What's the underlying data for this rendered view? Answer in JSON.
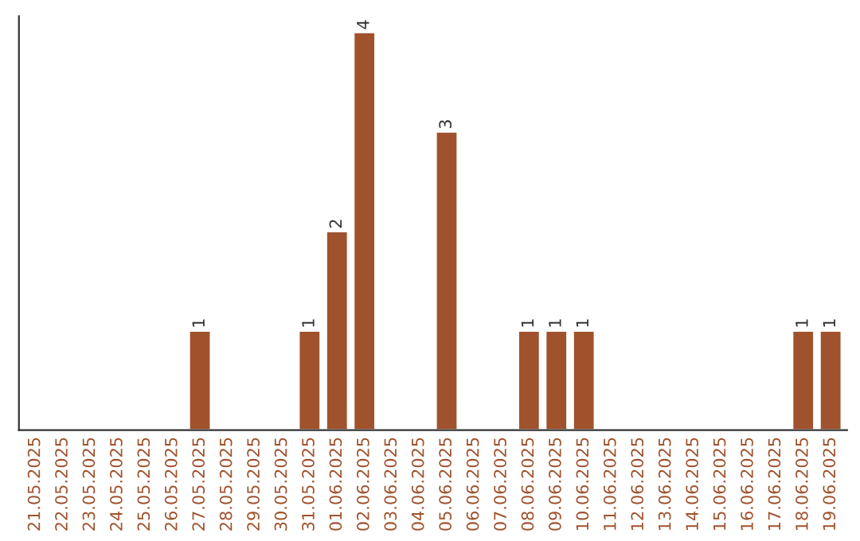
{
  "chart_data": {
    "type": "bar",
    "categories": [
      "21.05.2025",
      "22.05.2025",
      "23.05.2025",
      "24.05.2025",
      "25.05.2025",
      "26.05.2025",
      "27.05.2025",
      "28.05.2025",
      "29.05.2025",
      "30.05.2025",
      "31.05.2025",
      "01.06.2025",
      "02.06.2025",
      "03.06.2025",
      "04.06.2025",
      "05.06.2025",
      "06.06.2025",
      "07.06.2025",
      "08.06.2025",
      "09.06.2025",
      "10.06.2025",
      "11.06.2025",
      "12.06.2025",
      "13.06.2025",
      "14.06.2025",
      "15.06.2025",
      "16.06.2025",
      "17.06.2025",
      "18.06.2025",
      "19.06.2025"
    ],
    "values": [
      null,
      null,
      null,
      null,
      null,
      null,
      1,
      null,
      null,
      null,
      1,
      2,
      4,
      null,
      null,
      3,
      null,
      null,
      1,
      1,
      1,
      null,
      null,
      null,
      null,
      null,
      null,
      null,
      1,
      1
    ],
    "value_labels": [
      null,
      null,
      null,
      null,
      null,
      null,
      "1",
      null,
      null,
      null,
      "1",
      "2",
      "4",
      null,
      null,
      "3",
      null,
      null,
      "1",
      "1",
      "1",
      null,
      null,
      null,
      null,
      null,
      null,
      null,
      "1",
      "1"
    ],
    "color": "#a0522d",
    "tick_labels": "x",
    "grid": false,
    "legend": false
  }
}
